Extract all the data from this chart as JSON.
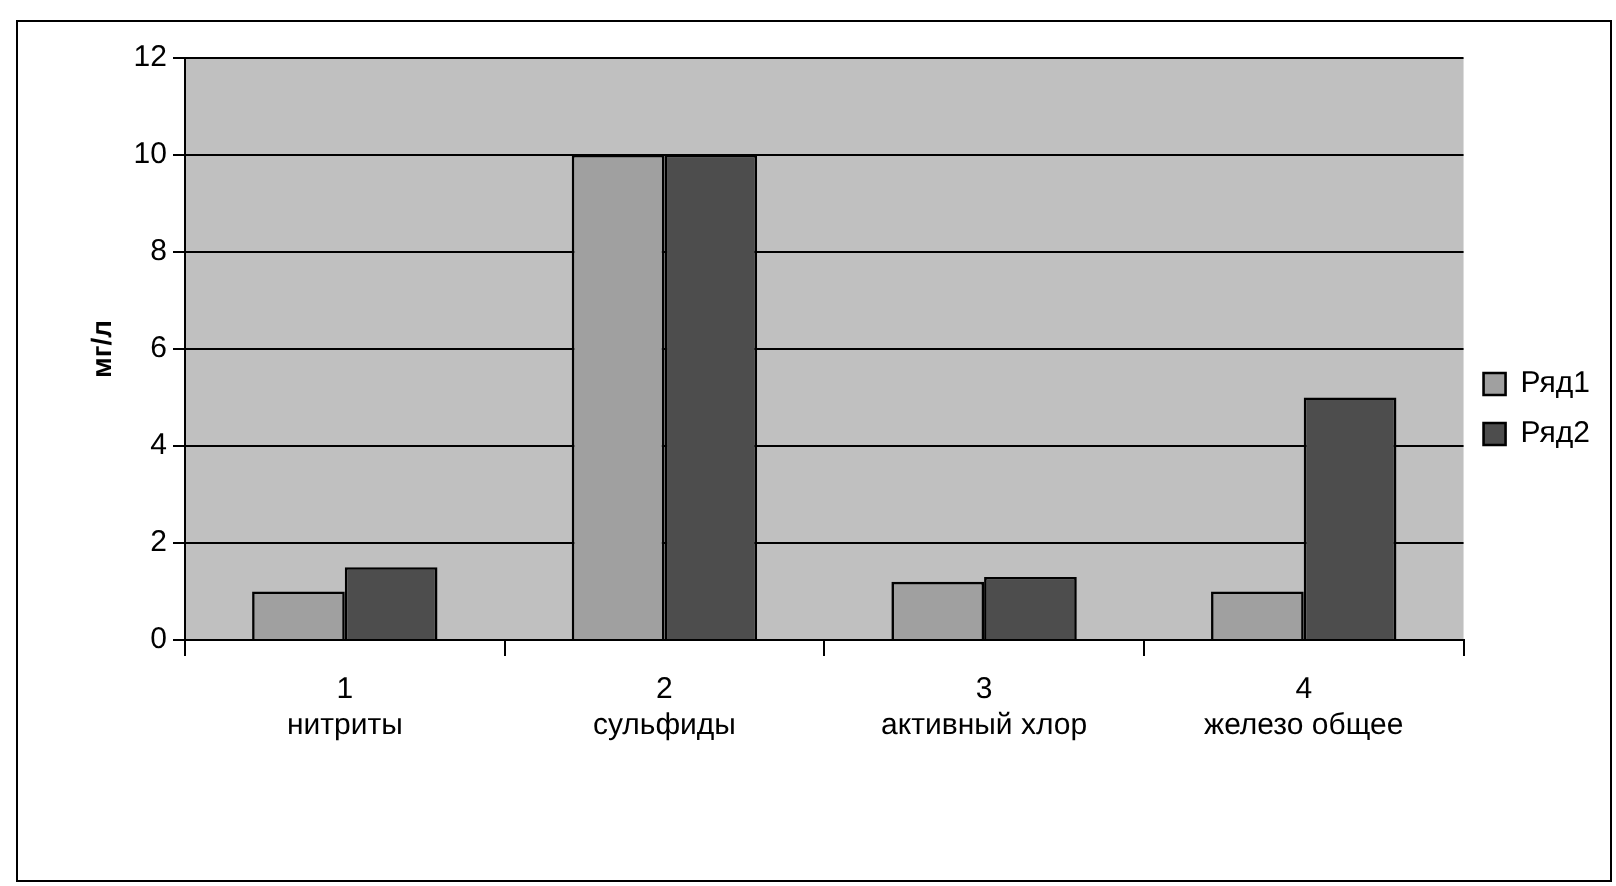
{
  "chart_data": {
    "type": "bar",
    "categories": [
      "1\nнитриты",
      "2\nсульфиды",
      "3\nактивный хлор",
      "4\nжелезо общее"
    ],
    "ylabel": "мг/л",
    "ylim": [
      0,
      12
    ],
    "yticks": [
      0,
      2,
      4,
      6,
      8,
      10,
      12
    ],
    "grid": "y",
    "legend": "right",
    "series": [
      {
        "name": "Ряд1",
        "color": "#a0a0a0",
        "values": [
          1,
          10,
          1.2,
          1
        ]
      },
      {
        "name": "Ряд2",
        "color": "#4d4d4d",
        "values": [
          1.5,
          10,
          1.3,
          5
        ]
      }
    ]
  }
}
